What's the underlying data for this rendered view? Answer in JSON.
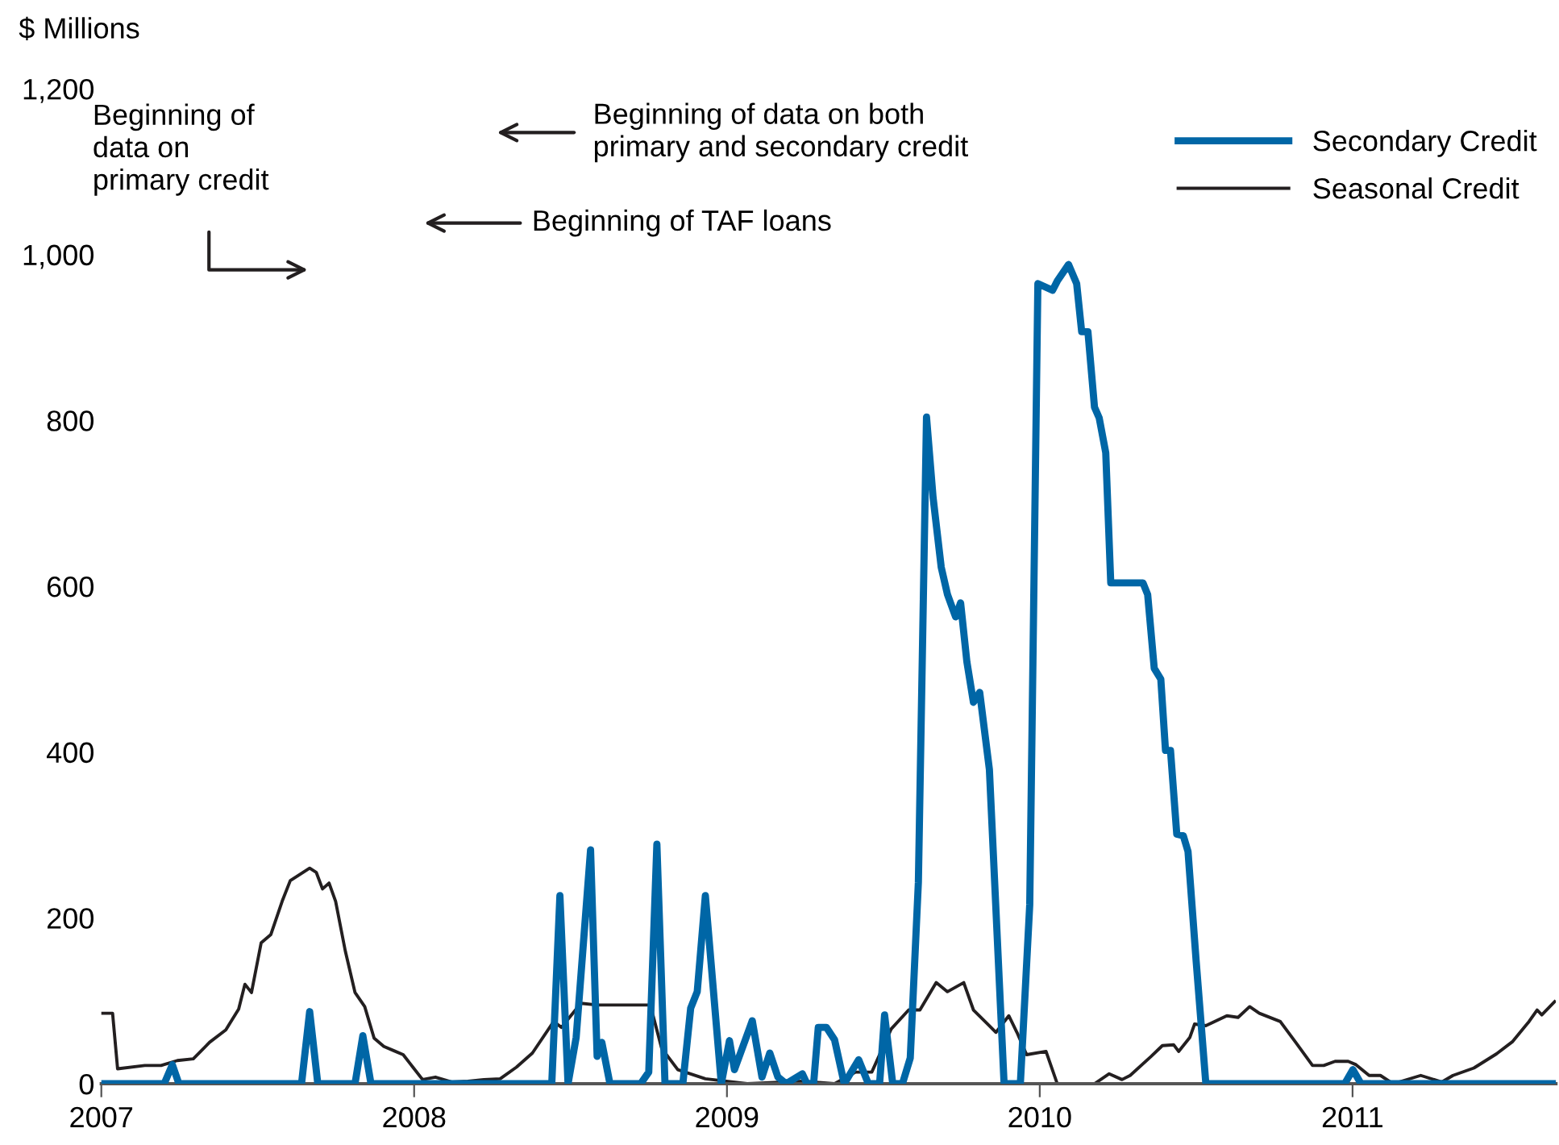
{
  "chart_data": {
    "type": "line",
    "ylabel": "$ Millions",
    "xlim": [
      2007,
      2011.65
    ],
    "xticks": [
      2007,
      2008,
      2009,
      2010,
      2011
    ],
    "ylim": [
      0,
      1200
    ],
    "yticks": [
      0,
      200,
      400,
      600,
      800,
      {
        "value": 1000,
        "label": "1,000"
      },
      {
        "value": 1200,
        "label": "1,200"
      }
    ],
    "grid": false,
    "legend": "top right",
    "annotations": [
      "Beginning of\ndata on\nprimary credit",
      "Beginning of data on both\nprimary and secondary credit",
      "Beginning of TAF loans"
    ],
    "series": [
      {
        "name": "Secondary Credit",
        "color": "#0066a6",
        "x": [
          2007.0,
          2007.201,
          2007.227,
          2007.248,
          2007.64,
          2007.666,
          2007.692,
          2007.811,
          2007.836,
          2007.862,
          2008.44,
          2008.466,
          2008.492,
          2008.518,
          2008.564,
          2008.585,
          2008.6,
          2008.626,
          2008.724,
          2008.75,
          2008.776,
          2008.802,
          2008.859,
          2008.884,
          2008.905,
          2008.931,
          2008.982,
          2009.008,
          2009.024,
          2009.081,
          2009.112,
          2009.137,
          2009.163,
          2009.189,
          2009.241,
          2009.256,
          2009.277,
          2009.292,
          2009.318,
          2009.344,
          2009.375,
          2009.421,
          2009.452,
          2009.488,
          2009.504,
          2009.53,
          2009.561,
          2009.586,
          2009.612,
          2009.638,
          2009.659,
          2009.685,
          2009.705,
          2009.731,
          2009.747,
          2009.767,
          2009.788,
          2009.808,
          2009.839,
          2009.886,
          2009.938,
          2009.968,
          2009.994,
          2010.041,
          2010.056,
          2010.092,
          2010.118,
          2010.134,
          2010.154,
          2010.175,
          2010.19,
          2010.211,
          2010.227,
          2010.33,
          2010.345,
          2010.366,
          2010.387,
          2010.402,
          2010.418,
          2010.438,
          2010.459,
          2010.474,
          2010.5,
          2010.531,
          2010.975,
          2011.001,
          2011.027,
          2011.646
        ],
        "values": [
          0,
          0,
          23,
          0,
          0,
          87,
          0,
          0,
          58,
          0,
          0,
          227,
          0,
          56,
          282,
          33,
          50,
          0,
          0,
          14,
          289,
          0,
          0,
          91,
          111,
          227,
          0,
          52,
          17,
          76,
          8,
          37,
          8,
          0,
          12,
          0,
          0,
          68,
          68,
          53,
          0,
          29,
          0,
          0,
          83,
          0,
          0,
          31,
          243,
          804,
          707,
          623,
          590,
          563,
          580,
          509,
          460,
          472,
          379,
          0,
          0,
          216,
          965,
          957,
          968,
          988,
          965,
          907,
          907,
          816,
          803,
          761,
          604,
          604,
          590,
          501,
          488,
          402,
          402,
          301,
          299,
          280,
          148,
          0,
          0,
          17,
          0,
          0
        ]
      },
      {
        "name": "Seasonal Credit",
        "color": "#231f20",
        "x": [
          2007.0,
          2007.036,
          2007.052,
          2007.139,
          2007.191,
          2007.243,
          2007.294,
          2007.346,
          2007.398,
          2007.439,
          2007.459,
          2007.48,
          2007.511,
          2007.542,
          2007.578,
          2007.604,
          2007.645,
          2007.666,
          2007.687,
          2007.707,
          2007.728,
          2007.749,
          2007.78,
          2007.811,
          2007.842,
          2007.872,
          2007.903,
          2007.934,
          2007.965,
          2007.996,
          2008.027,
          2008.068,
          2008.12,
          2008.172,
          2008.223,
          2008.275,
          2008.327,
          2008.378,
          2008.446,
          2008.471,
          2008.533,
          2008.585,
          2008.688,
          2008.755,
          2008.791,
          2008.843,
          2008.931,
          2009.065,
          2009.241,
          2009.344,
          2009.411,
          2009.463,
          2009.525,
          2009.581,
          2009.617,
          2009.669,
          2009.705,
          2009.757,
          2009.788,
          2009.86,
          2009.901,
          2009.927,
          2009.958,
          2010.02,
          2010.056,
          2010.175,
          2010.222,
          2010.263,
          2010.289,
          2010.356,
          2010.392,
          2010.428,
          2010.444,
          2010.48,
          2010.495,
          2010.531,
          2010.598,
          2010.634,
          2010.671,
          2010.702,
          2010.769,
          2010.82,
          2010.872,
          2010.908,
          2010.944,
          2010.986,
          2011.011,
          2011.053,
          2011.089,
          2011.13,
          2011.218,
          2011.285,
          2011.321,
          2011.388,
          2011.46,
          2011.512,
          2011.564,
          2011.59,
          2011.605,
          2011.646
        ],
        "values": [
          85,
          85,
          18,
          22,
          22,
          28,
          30,
          50,
          65,
          90,
          120,
          110,
          170,
          180,
          220,
          245,
          255,
          260,
          255,
          235,
          242,
          220,
          160,
          110,
          93,
          55,
          45,
          40,
          35,
          20,
          5,
          8,
          2,
          3,
          5,
          6,
          20,
          37,
          75,
          68,
          97,
          95,
          95,
          95,
          43,
          17,
          6,
          0,
          3,
          0,
          14,
          14,
          66,
          89,
          89,
          122,
          111,
          122,
          89,
          62,
          82,
          62,
          35,
          39,
          0,
          0,
          12,
          5,
          10,
          33,
          46,
          47,
          39,
          56,
          72,
          70,
          82,
          80,
          93,
          85,
          75,
          49,
          22,
          22,
          27,
          27,
          23,
          10,
          10,
          0,
          10,
          2,
          10,
          19,
          36,
          51,
          75,
          89,
          83,
          99
        ]
      }
    ]
  }
}
